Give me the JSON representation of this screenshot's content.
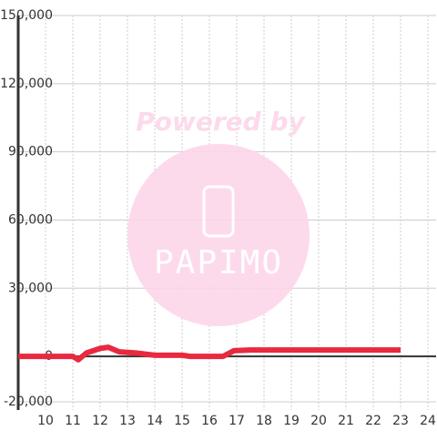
{
  "chart_data": {
    "type": "line",
    "watermark": {
      "caption": "Powered by",
      "brand": "PAPIMO"
    },
    "x": [
      9,
      10,
      11,
      11.2,
      11.5,
      12,
      12.3,
      12.7,
      13.3,
      14,
      15,
      15.3,
      16.5,
      16.9,
      17.5,
      23
    ],
    "series": [
      {
        "color": "#e8293f",
        "values": [
          0,
          0,
          0,
          -1500,
          1500,
          3500,
          4000,
          2000,
          1500,
          500,
          500,
          0,
          0,
          2500,
          2800,
          2800
        ]
      }
    ],
    "xlim": [
      9,
      24.3
    ],
    "xticks": [
      10,
      11,
      12,
      13,
      14,
      15,
      16,
      17,
      18,
      19,
      20,
      21,
      22,
      23,
      24
    ],
    "ylim": [
      -20000,
      150000
    ],
    "yticks": [
      {
        "value": -20000,
        "label": "-20,000"
      },
      0,
      {
        "value": 30000,
        "label": "30,000"
      },
      {
        "value": 60000,
        "label": "60,000"
      },
      {
        "value": 90000,
        "label": "90,000"
      },
      {
        "value": 120000,
        "label": "120,000"
      },
      {
        "value": 150000,
        "label": "150,000"
      }
    ],
    "grid": true
  }
}
